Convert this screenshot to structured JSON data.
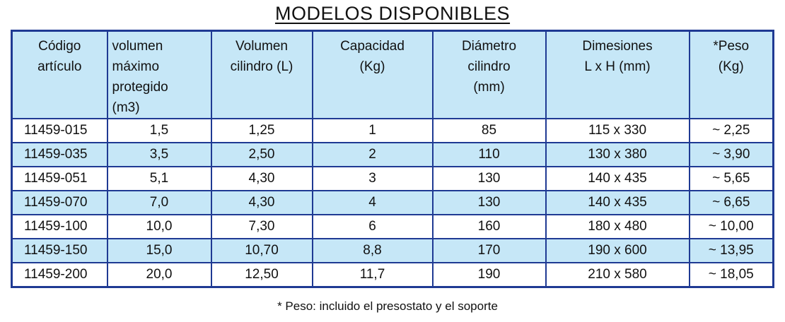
{
  "title": "MODELOS DISPONIBLES",
  "table": {
    "header": [
      [
        "Código",
        "artículo"
      ],
      [
        "volumen",
        "máximo",
        "protegido",
        "(m3)"
      ],
      [
        "Volumen",
        "cilindro (L)"
      ],
      [
        "Capacidad",
        "(Kg)"
      ],
      [
        "Diámetro",
        "cilindro",
        "(mm)"
      ],
      [
        "Dimesiones",
        "L x H (mm)"
      ],
      [
        "*Peso",
        "(Kg)"
      ]
    ],
    "rows": [
      [
        "11459-015",
        "1,5",
        "1,25",
        "1",
        "85",
        "115 x 330",
        "~ 2,25"
      ],
      [
        "11459-035",
        "3,5",
        "2,50",
        "2",
        "110",
        "130 x 380",
        "~ 3,90"
      ],
      [
        "11459-051",
        "5,1",
        "4,30",
        "3",
        "130",
        "140 x 435",
        "~ 5,65"
      ],
      [
        "11459-070",
        "7,0",
        "4,30",
        "4",
        "130",
        "140 x 435",
        "~ 6,65"
      ],
      [
        "11459-100",
        "10,0",
        "7,30",
        "6",
        "160",
        "180 x 480",
        "~ 10,00"
      ],
      [
        "11459-150",
        "15,0",
        "10,70",
        "8,8",
        "170",
        "190 x 600",
        "~ 13,95"
      ],
      [
        "11459-200",
        "20,0",
        "12,50",
        "11,7",
        "190",
        "210 x 580",
        "~ 18,05"
      ]
    ]
  },
  "footnote": "* Peso: incluido el presostato y el soporte"
}
